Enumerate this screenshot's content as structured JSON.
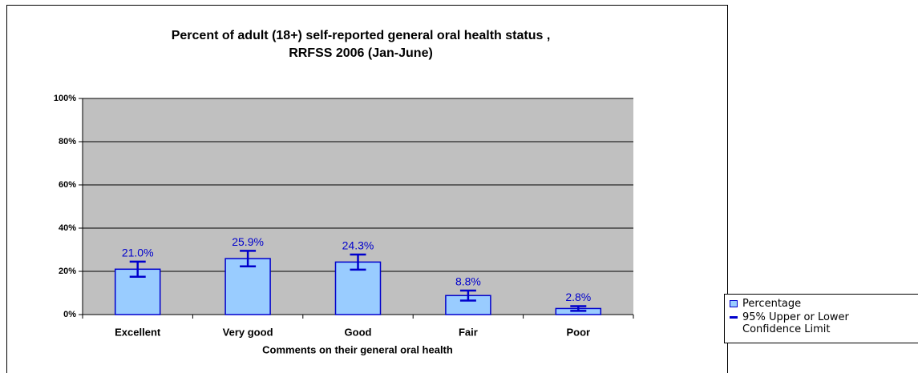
{
  "chart_data": {
    "type": "bar",
    "title": [
      "Percent of adult (18+) self-reported general oral health status ,",
      "RRFSS 2006 (Jan-June)"
    ],
    "x_label": "Comments on their general oral health",
    "categories": [
      "Excellent",
      "Very good",
      "Good",
      "Fair",
      "Poor"
    ],
    "series": [
      {
        "name": "Percentage",
        "color": "#99ccff",
        "edge_color": "#0000cc",
        "values": [
          21.0,
          25.9,
          24.3,
          8.8,
          2.8
        ],
        "value_labels": [
          "21.0%",
          "25.9%",
          "24.3%",
          "8.8%",
          "2.8%"
        ],
        "errors": [
          3.5,
          3.6,
          3.5,
          2.3,
          1.1
        ],
        "error_name": "95% Upper or Lower Confidence Limit",
        "error_color": "#0000cc"
      }
    ],
    "ylim": [
      0,
      100
    ],
    "yticks": [
      {
        "value": 0,
        "label": "0%"
      },
      {
        "value": 20,
        "label": "20%"
      },
      {
        "value": 40,
        "label": "40%"
      },
      {
        "value": 60,
        "label": "60%"
      },
      {
        "value": 80,
        "label": "80%"
      },
      {
        "value": 100,
        "label": "100%"
      }
    ],
    "grid": true,
    "plot_background": "#c0c0c0",
    "legend": "right"
  }
}
